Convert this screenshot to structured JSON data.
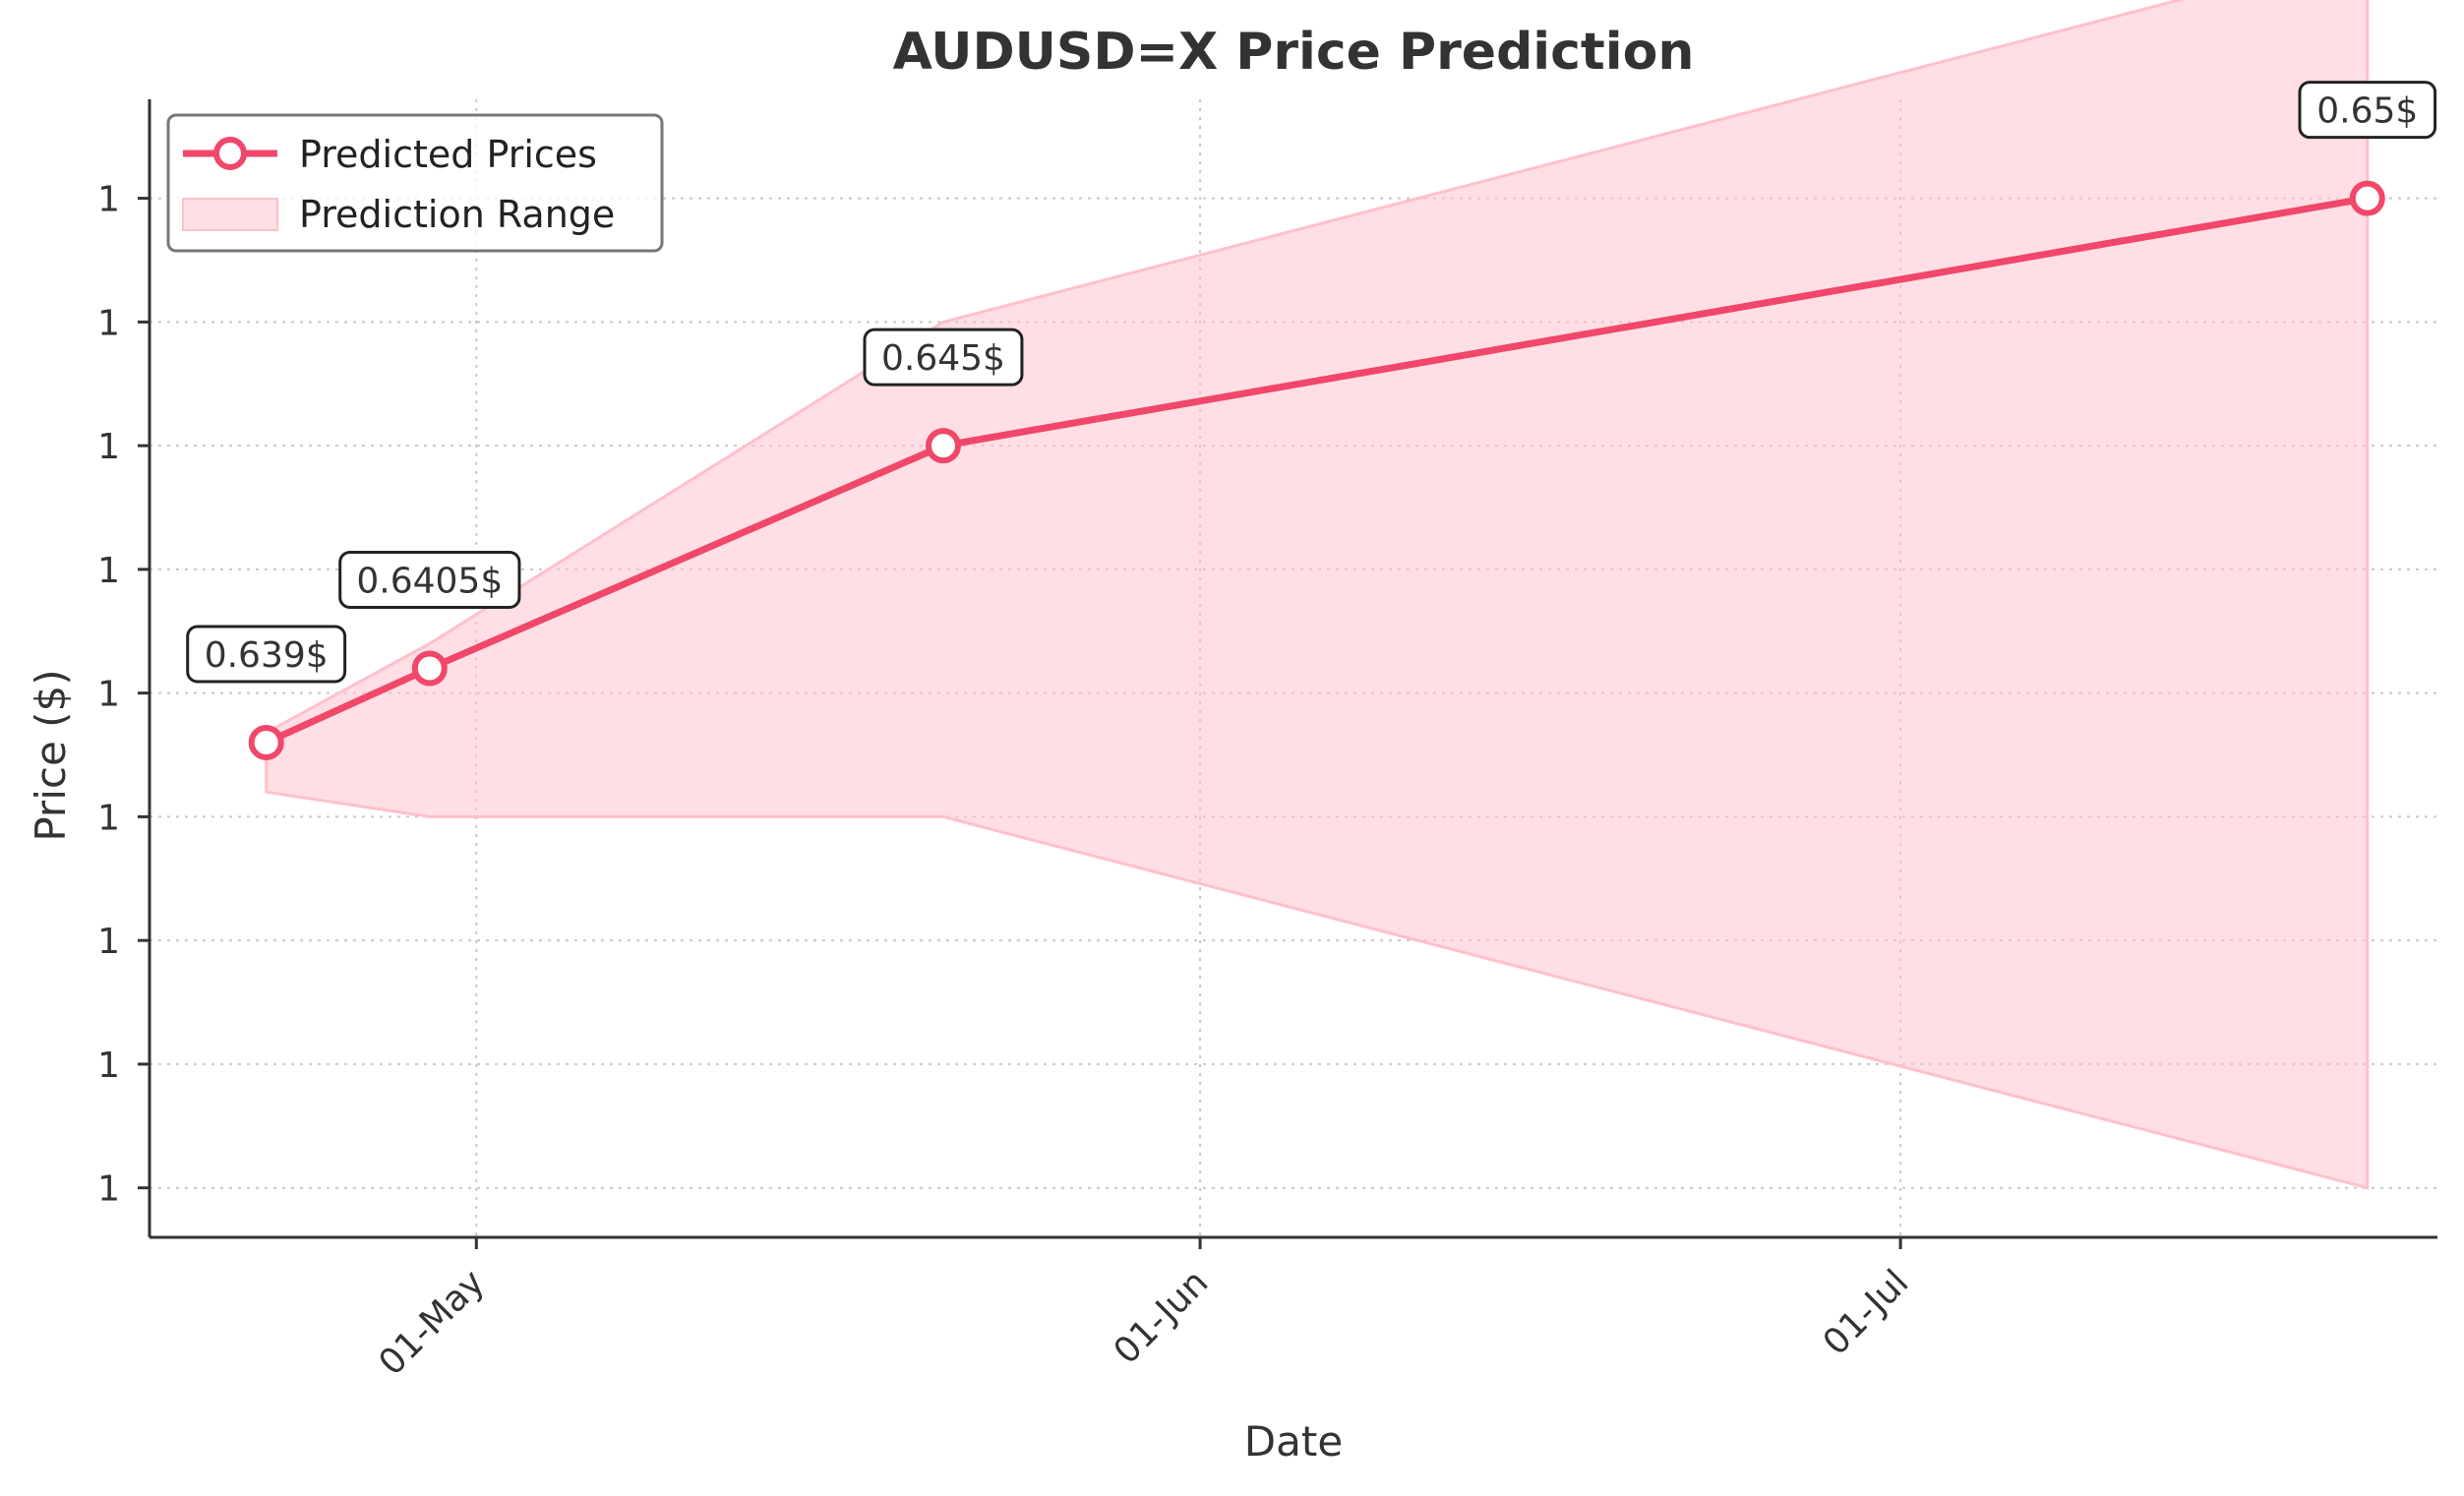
{
  "chart_data": {
    "type": "line",
    "title": "AUDUSD=X Price Prediction",
    "xlabel": "Date",
    "ylabel": "Price ($)",
    "x_ticks": [
      {
        "date": "2024-05-01",
        "label": "01-May"
      },
      {
        "date": "2024-06-01",
        "label": "01-Jun"
      },
      {
        "date": "2024-07-01",
        "label": "01-Jul"
      }
    ],
    "y_ticks": [
      {
        "value": 0.63,
        "label": "1"
      },
      {
        "value": 0.6325,
        "label": "1"
      },
      {
        "value": 0.635,
        "label": "1"
      },
      {
        "value": 0.6375,
        "label": "1"
      },
      {
        "value": 0.64,
        "label": "1"
      },
      {
        "value": 0.6425,
        "label": "1"
      },
      {
        "value": 0.645,
        "label": "1"
      },
      {
        "value": 0.6475,
        "label": "1"
      },
      {
        "value": 0.65,
        "label": "1"
      }
    ],
    "xlim": [
      "2024-04-17",
      "2024-07-24"
    ],
    "ylim": [
      0.629,
      0.652
    ],
    "grid": true,
    "legend_position": "top-left",
    "series": [
      {
        "name": "Predicted Prices",
        "color": "#f0476a",
        "points": [
          {
            "x": "2024-04-22",
            "y": 0.639,
            "label": "0.639$"
          },
          {
            "x": "2024-04-29",
            "y": 0.6405,
            "label": "0.6405$"
          },
          {
            "x": "2024-05-21",
            "y": 0.645,
            "label": "0.645$"
          },
          {
            "x": "2024-07-21",
            "y": 0.65,
            "label": "0.65$"
          }
        ]
      }
    ],
    "range": {
      "name": "Prediction Range",
      "color": "#ffc0cb",
      "points": [
        {
          "x": "2024-04-22",
          "lower": 0.638,
          "upper": 0.6392
        },
        {
          "x": "2024-04-29",
          "lower": 0.6375,
          "upper": 0.641
        },
        {
          "x": "2024-05-21",
          "lower": 0.6375,
          "upper": 0.6475
        },
        {
          "x": "2024-07-21",
          "lower": 0.63,
          "upper": 0.655
        }
      ]
    }
  }
}
